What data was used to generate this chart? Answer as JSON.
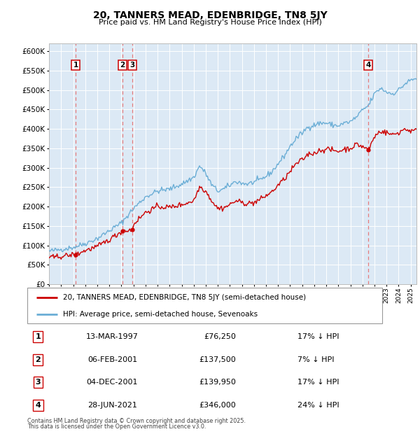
{
  "title": "20, TANNERS MEAD, EDENBRIDGE, TN8 5JY",
  "subtitle": "Price paid vs. HM Land Registry's House Price Index (HPI)",
  "legend_line1": "20, TANNERS MEAD, EDENBRIDGE, TN8 5JY (semi-detached house)",
  "legend_line2": "HPI: Average price, semi-detached house, Sevenoaks",
  "footnote1": "Contains HM Land Registry data © Crown copyright and database right 2025.",
  "footnote2": "This data is licensed under the Open Government Licence v3.0.",
  "hpi_color": "#6baed6",
  "price_color": "#cc0000",
  "vline_color": "#e87070",
  "plot_bg_color": "#dce9f5",
  "ylim": [
    0,
    620000
  ],
  "yticks": [
    0,
    50000,
    100000,
    150000,
    200000,
    250000,
    300000,
    350000,
    400000,
    450000,
    500000,
    550000,
    600000
  ],
  "transactions": [
    {
      "num": 1,
      "date": "13-MAR-1997",
      "price": 76250,
      "pct": "17%",
      "dir": "↓",
      "year_x": 1997.2
    },
    {
      "num": 2,
      "date": "06-FEB-2001",
      "price": 137500,
      "pct": "7%",
      "dir": "↓",
      "year_x": 2001.1
    },
    {
      "num": 3,
      "date": "04-DEC-2001",
      "price": 139950,
      "pct": "17%",
      "dir": "↓",
      "year_x": 2001.92
    },
    {
      "num": 4,
      "date": "28-JUN-2021",
      "price": 346000,
      "pct": "24%",
      "dir": "↓",
      "year_x": 2021.5
    }
  ],
  "xmin": 1995.0,
  "xmax": 2025.5,
  "hpi_anchors_years": [
    1995.0,
    1996.0,
    1997.0,
    1998.0,
    1999.0,
    2000.0,
    2001.0,
    2002.0,
    2003.0,
    2004.0,
    2005.0,
    2006.0,
    2007.0,
    2007.5,
    2008.0,
    2008.5,
    2009.0,
    2009.5,
    2010.0,
    2010.5,
    2011.0,
    2011.5,
    2012.0,
    2012.5,
    2013.0,
    2013.5,
    2014.0,
    2014.5,
    2015.0,
    2015.5,
    2016.0,
    2016.5,
    2017.0,
    2017.5,
    2018.0,
    2018.5,
    2019.0,
    2019.5,
    2020.0,
    2020.5,
    2021.0,
    2021.5,
    2022.0,
    2022.5,
    2023.0,
    2023.5,
    2024.0,
    2024.5,
    2025.0,
    2025.5
  ],
  "hpi_anchors_vals": [
    85000,
    90000,
    95000,
    105000,
    118000,
    138000,
    158000,
    195000,
    225000,
    240000,
    245000,
    258000,
    275000,
    305000,
    285000,
    255000,
    240000,
    245000,
    255000,
    265000,
    260000,
    258000,
    263000,
    268000,
    278000,
    290000,
    310000,
    330000,
    355000,
    375000,
    390000,
    405000,
    410000,
    415000,
    415000,
    410000,
    408000,
    415000,
    418000,
    430000,
    448000,
    460000,
    490000,
    505000,
    495000,
    490000,
    500000,
    515000,
    525000,
    530000
  ],
  "price_anchors_years": [
    1995.0,
    1996.0,
    1997.0,
    1997.2,
    1998.0,
    1999.0,
    2000.0,
    2001.1,
    2001.92,
    2002.0,
    2003.0,
    2004.0,
    2005.0,
    2006.0,
    2007.0,
    2007.5,
    2008.0,
    2008.5,
    2009.0,
    2009.5,
    2010.0,
    2010.5,
    2011.0,
    2011.5,
    2012.0,
    2012.5,
    2013.0,
    2013.5,
    2014.0,
    2014.5,
    2015.0,
    2015.5,
    2016.0,
    2016.5,
    2017.0,
    2017.5,
    2018.0,
    2018.5,
    2019.0,
    2019.5,
    2020.0,
    2020.5,
    2021.0,
    2021.5,
    2022.0,
    2022.5,
    2023.0,
    2023.5,
    2024.0,
    2024.5,
    2025.0,
    2025.5
  ],
  "price_anchors_vals": [
    68000,
    72000,
    76000,
    76250,
    87000,
    97000,
    115000,
    137500,
    139950,
    155000,
    185000,
    200000,
    198000,
    205000,
    215000,
    252000,
    240000,
    215000,
    195000,
    197000,
    205000,
    215000,
    210000,
    208000,
    210000,
    218000,
    228000,
    238000,
    255000,
    270000,
    290000,
    310000,
    320000,
    335000,
    338000,
    345000,
    348000,
    345000,
    342000,
    348000,
    350000,
    360000,
    355000,
    346000,
    380000,
    395000,
    390000,
    385000,
    390000,
    400000,
    395000,
    395000
  ]
}
